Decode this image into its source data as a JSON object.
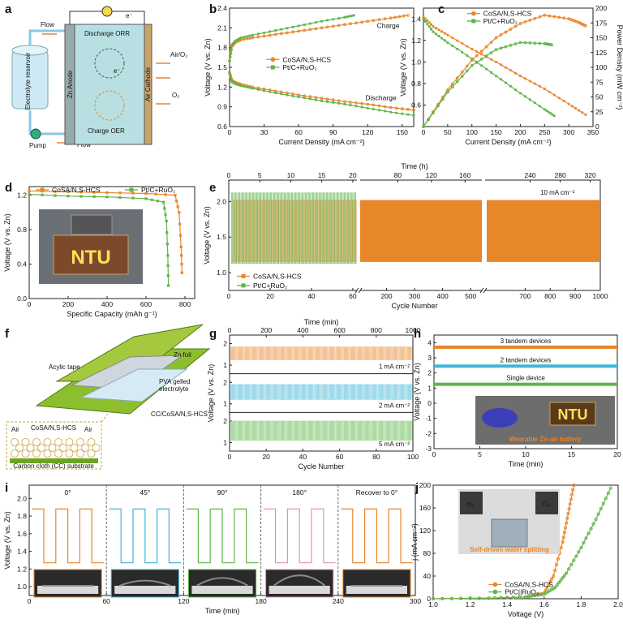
{
  "colors": {
    "orange": "#e8862a",
    "green": "#5fb548",
    "blue": "#3fb6d8",
    "pink": "#e98cbf",
    "dark": "#222222"
  },
  "panels": {
    "a": {
      "label": "a",
      "texts": [
        "Flow",
        "Electrolyte reservoir",
        "Zn Anode",
        "Discharge ORR",
        "Charge OER",
        "Air Cathode",
        "Air/O₂",
        "O₂",
        "Pump",
        "Flow",
        "e⁻",
        "e⁻"
      ]
    },
    "b": {
      "label": "b"
    },
    "c": {
      "label": "c"
    },
    "d": {
      "label": "d",
      "photo_text": "NTU"
    },
    "e": {
      "label": "e",
      "annotation": "10 mA cm⁻²"
    },
    "f": {
      "label": "f",
      "texts": [
        "Zn foil",
        "Acylic tape",
        "PVA gelled electrolyte",
        "CC/CoSA/N,S-HCS",
        "CoSA/N,S-HCS",
        "Air",
        "Air",
        "Carbon cloth (CC) substrate"
      ]
    },
    "g": {
      "label": "g",
      "annotations": [
        "1 mA cm⁻²",
        "2 mA cm⁻²",
        "5 mA cm⁻²"
      ]
    },
    "h": {
      "label": "h",
      "annotations": [
        "3 tandem devices",
        "2 tandem devices",
        "Single device"
      ],
      "photo_text": "NTU",
      "photo_caption": "Wearable Zn-air battery"
    },
    "i": {
      "label": "i",
      "angles": [
        "0°",
        "45°",
        "90°",
        "180°",
        "Recover to 0°"
      ]
    },
    "j": {
      "label": "j",
      "photo_labels": [
        "H₂",
        "O₂"
      ],
      "photo_caption": "Self-driven water splitting"
    }
  },
  "chart_data": [
    {
      "panel": "b",
      "type": "line",
      "xlabel": "Current Density (mA cm⁻²)",
      "ylabel": "Voltage (V vs. Zn)",
      "xlim": [
        0,
        160
      ],
      "ylim": [
        0.6,
        2.4
      ],
      "xticks": [
        0,
        30,
        60,
        90,
        120,
        150
      ],
      "yticks": [
        0.6,
        0.9,
        1.2,
        1.5,
        1.8,
        2.1,
        2.4
      ],
      "annotations": [
        "Charge",
        "Discharge"
      ],
      "legend": "center",
      "series": [
        {
          "name": "CoSA/N,S-HCS",
          "color": "#e8862a",
          "role": "charge",
          "x": [
            0,
            2,
            5,
            10,
            20,
            40,
            60,
            80,
            100,
            120,
            140,
            155
          ],
          "y": [
            1.6,
            1.82,
            1.88,
            1.92,
            1.95,
            2.0,
            2.05,
            2.1,
            2.15,
            2.2,
            2.25,
            2.29
          ]
        },
        {
          "name": "CoSA/N,S-HCS",
          "color": "#e8862a",
          "role": "discharge",
          "x": [
            0,
            2,
            5,
            10,
            20,
            40,
            60,
            80,
            100,
            120,
            140,
            160
          ],
          "y": [
            1.42,
            1.3,
            1.27,
            1.24,
            1.2,
            1.14,
            1.08,
            1.03,
            0.98,
            0.94,
            0.89,
            0.85
          ]
        },
        {
          "name": "Pt/C+RuO₂",
          "color": "#5fb548",
          "role": "charge",
          "x": [
            0,
            2,
            5,
            10,
            20,
            40,
            60,
            80,
            100,
            108
          ],
          "y": [
            1.6,
            1.84,
            1.9,
            1.95,
            1.99,
            2.06,
            2.13,
            2.2,
            2.26,
            2.29
          ]
        },
        {
          "name": "Pt/C+RuO₂",
          "color": "#5fb548",
          "role": "discharge",
          "x": [
            0,
            2,
            5,
            10,
            20,
            40,
            60,
            80,
            100,
            120,
            140,
            160
          ],
          "y": [
            1.4,
            1.28,
            1.25,
            1.22,
            1.18,
            1.11,
            1.05,
            0.99,
            0.94,
            0.88,
            0.82,
            0.77
          ]
        }
      ]
    },
    {
      "panel": "c",
      "type": "line",
      "xlabel": "Current Density (mA cm⁻²)",
      "ylabel": "Voltage (V vs. Zn)",
      "y2label": "Power Density (mW cm⁻²)",
      "xlim": [
        0,
        350
      ],
      "ylim": [
        0.4,
        1.5
      ],
      "y2lim": [
        0,
        200
      ],
      "xticks": [
        0,
        50,
        100,
        150,
        200,
        250,
        300,
        350
      ],
      "yticks": [
        0.6,
        0.8,
        1.0,
        1.2,
        1.4
      ],
      "y2ticks": [
        0,
        25,
        50,
        75,
        100,
        125,
        150,
        175,
        200
      ],
      "legend": "top-center",
      "series": [
        {
          "name": "CoSA/N,S-HCS",
          "color": "#e8862a",
          "axis": "left",
          "x": [
            0,
            20,
            50,
            100,
            150,
            200,
            250,
            300,
            335
          ],
          "y": [
            1.42,
            1.33,
            1.25,
            1.12,
            1.0,
            0.87,
            0.75,
            0.61,
            0.51
          ]
        },
        {
          "name": "Pt/C+RuO₂",
          "color": "#5fb548",
          "axis": "left",
          "x": [
            0,
            20,
            50,
            100,
            150,
            200,
            250,
            270
          ],
          "y": [
            1.4,
            1.28,
            1.18,
            1.03,
            0.87,
            0.71,
            0.56,
            0.5
          ]
        },
        {
          "name": "CoSA/N,S-HCS",
          "color": "#e8862a",
          "axis": "right",
          "x": [
            0,
            50,
            100,
            150,
            200,
            250,
            300,
            320,
            335
          ],
          "y": [
            0,
            62,
            112,
            150,
            174,
            188,
            182,
            176,
            170
          ]
        },
        {
          "name": "Pt/C+RuO₂",
          "color": "#5fb548",
          "axis": "right",
          "x": [
            0,
            50,
            100,
            150,
            200,
            250,
            265
          ],
          "y": [
            0,
            58,
            103,
            130,
            142,
            140,
            138
          ]
        }
      ]
    },
    {
      "panel": "d",
      "type": "line",
      "xlabel": "Specific Capacity (mAh g⁻¹)",
      "ylabel": "Voltage (V vs. Zn)",
      "xlim": [
        0,
        850
      ],
      "ylim": [
        0,
        1.3
      ],
      "xticks": [
        0,
        200,
        400,
        600,
        800
      ],
      "yticks": [
        0.0,
        0.4,
        0.8,
        1.2
      ],
      "legend": "top",
      "series": [
        {
          "name": "CoSA/N,S-HCS",
          "color": "#e8862a",
          "x": [
            0,
            200,
            400,
            600,
            750,
            770,
            780,
            785
          ],
          "y": [
            1.25,
            1.24,
            1.23,
            1.22,
            1.2,
            1.0,
            0.6,
            0.3
          ]
        },
        {
          "name": "Pt/C+RuO₂",
          "color": "#5fb548",
          "x": [
            0,
            200,
            400,
            600,
            690,
            705,
            712,
            715
          ],
          "y": [
            1.21,
            1.19,
            1.18,
            1.16,
            1.12,
            0.9,
            0.5,
            0.15
          ]
        }
      ]
    },
    {
      "panel": "e",
      "type": "line",
      "xlabel": "Cycle Number",
      "ylabel": "Voltage (V vs. Zn)",
      "x2label": "Time (h)",
      "ylim": [
        0.75,
        2.3
      ],
      "xticks": [
        0,
        20,
        40,
        60,
        100,
        200,
        300,
        400,
        500,
        700,
        800,
        900,
        1000
      ],
      "x2ticks": [
        0,
        5,
        10,
        15,
        20,
        80,
        120,
        160,
        240,
        280,
        320
      ],
      "yticks": [
        1.0,
        1.5,
        2.0
      ],
      "legend": "bottom-left",
      "series": [
        {
          "name": "CoSA/N,S-HCS",
          "color": "#e8862a",
          "charge_v": 2.02,
          "discharge_v": 1.15,
          "cycles": [
            0,
            1000
          ]
        },
        {
          "name": "Pt/C+RuO₂",
          "color": "#5fb548",
          "charge_v": [
            2.05,
            2.2
          ],
          "discharge_v": [
            1.12,
            1.15
          ],
          "cycles": [
            0,
            60
          ]
        }
      ]
    },
    {
      "panel": "g",
      "type": "line",
      "xlabel": "Cycle Number",
      "ylabel": "Voltage (V vs. Zn)",
      "x2label": "Time (min)",
      "xlim": [
        0,
        100
      ],
      "x2lim": [
        0,
        1000
      ],
      "xticks": [
        0,
        20,
        40,
        60,
        80,
        100
      ],
      "x2ticks": [
        0,
        200,
        400,
        600,
        800,
        1000
      ],
      "yticks": [
        1,
        2
      ],
      "series": [
        {
          "name": "1 mA cm⁻²",
          "color": "#e8862a",
          "charge_v": 1.85,
          "discharge_v": 1.25
        },
        {
          "name": "2 mA cm⁻²",
          "color": "#3fb6d8",
          "charge_v": 1.9,
          "discharge_v": 1.2
        },
        {
          "name": "5 mA cm⁻²",
          "color": "#5fb548",
          "charge_v": 2.0,
          "discharge_v": 1.1
        }
      ]
    },
    {
      "panel": "h",
      "type": "line",
      "xlabel": "Time (min)",
      "ylabel": "Voltage (V vs. Zn)",
      "xlim": [
        0,
        20
      ],
      "ylim": [
        -3,
        4.5
      ],
      "xticks": [
        0,
        5,
        10,
        15,
        20
      ],
      "yticks": [
        -3,
        -2,
        -1,
        0,
        1,
        2,
        3,
        4
      ],
      "series": [
        {
          "name": "3 tandem devices",
          "color": "#e8862a",
          "y": 3.7
        },
        {
          "name": "2 tandem devices",
          "color": "#3fb6d8",
          "y": 2.45
        },
        {
          "name": "Single device",
          "color": "#5fb548",
          "y": 1.25
        }
      ]
    },
    {
      "panel": "i",
      "type": "line",
      "xlabel": "Time (min)",
      "ylabel": "Voltage (V vs. Zn)",
      "xlim": [
        0,
        300
      ],
      "ylim": [
        0.9,
        2.15
      ],
      "xticks": [
        0,
        60,
        120,
        180,
        240,
        300
      ],
      "yticks": [
        1.0,
        1.2,
        1.4,
        1.6,
        1.8,
        2.0
      ],
      "segments": [
        {
          "name": "0°",
          "color": "#e8862a",
          "start": 0,
          "end": 60
        },
        {
          "name": "45°",
          "color": "#3fb6d8",
          "start": 60,
          "end": 120
        },
        {
          "name": "90°",
          "color": "#5fb548",
          "start": 120,
          "end": 180
        },
        {
          "name": "180°",
          "color": "#e98cbf",
          "start": 180,
          "end": 240
        },
        {
          "name": "Recover to 0°",
          "color": "#e8862a",
          "start": 240,
          "end": 300
        }
      ],
      "charge_v": 1.88,
      "discharge_v": 1.27,
      "period_min": 20
    },
    {
      "panel": "j",
      "type": "line",
      "xlabel": "Voltage (V)",
      "ylabel": "j (mA cm⁻²)",
      "xlim": [
        1.0,
        2.0
      ],
      "ylim": [
        0,
        200
      ],
      "xticks": [
        1.0,
        1.2,
        1.4,
        1.6,
        1.8,
        2.0
      ],
      "yticks": [
        0,
        40,
        80,
        120,
        160,
        200
      ],
      "legend": "bottom-center",
      "series": [
        {
          "name": "CoSA/N,S-HCS",
          "color": "#e8862a",
          "x": [
            1.0,
            1.3,
            1.5,
            1.6,
            1.65,
            1.7,
            1.73,
            1.76
          ],
          "y": [
            0,
            1,
            3,
            10,
            40,
            100,
            150,
            200
          ]
        },
        {
          "name": "Pt/C||RuO₂",
          "color": "#5fb548",
          "x": [
            1.0,
            1.3,
            1.5,
            1.6,
            1.66,
            1.72,
            1.8,
            1.88,
            1.96
          ],
          "y": [
            0,
            1,
            3,
            8,
            20,
            45,
            90,
            140,
            195
          ]
        }
      ]
    }
  ]
}
